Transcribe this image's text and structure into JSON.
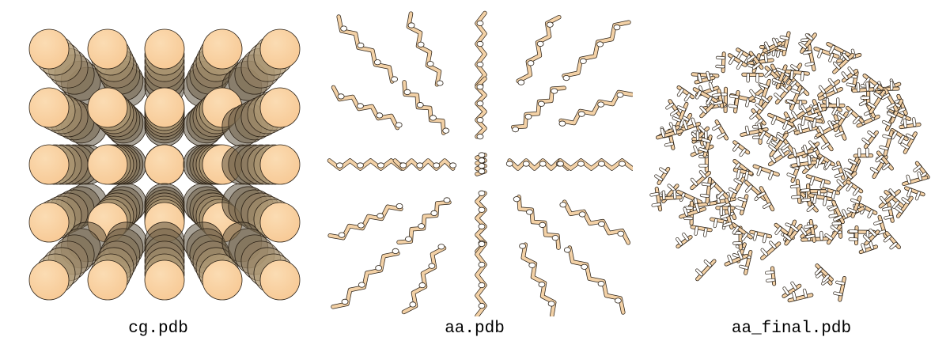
{
  "panels": [
    {
      "id": "cg",
      "caption": "cg.pdb"
    },
    {
      "id": "aa",
      "caption": "aa.pdb"
    },
    {
      "id": "final",
      "caption": "aa_final.pdb"
    }
  ],
  "colors": {
    "bead": "#f7c995",
    "bead_edge": "#2a2015",
    "bond": "#f3d1a6",
    "atom": "#ffffff"
  }
}
